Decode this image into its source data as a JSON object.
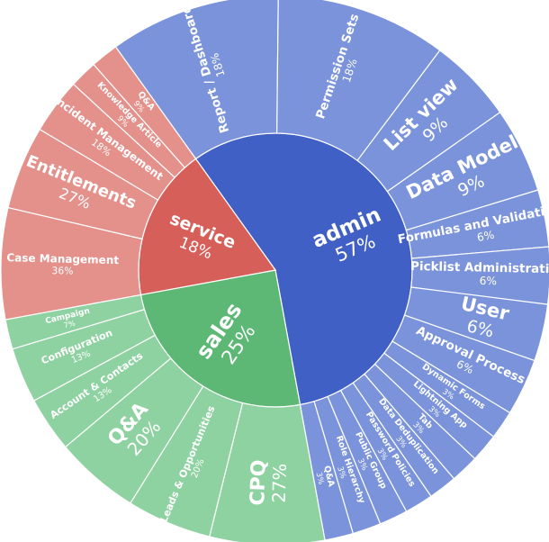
{
  "chart_data": {
    "type": "sunburst",
    "title": "",
    "children": [
      {
        "name": "admin",
        "share": "57%",
        "value": 57,
        "color": "#4160c6",
        "children": [
          {
            "name": "Report / Dashboard",
            "share": "18%",
            "value": 18,
            "color": "#7a93da"
          },
          {
            "name": "Permission Sets",
            "share": "18%",
            "value": 18,
            "color": "#7a93da"
          },
          {
            "name": "List view",
            "share": "9%",
            "value": 9,
            "color": "#7a93da"
          },
          {
            "name": "Data Model",
            "share": "9%",
            "value": 9,
            "color": "#7a93da"
          },
          {
            "name": "Formulas and Validations",
            "share": "6%",
            "value": 6,
            "color": "#7a93da"
          },
          {
            "name": "Picklist Administration",
            "share": "6%",
            "value": 6,
            "color": "#7a93da"
          },
          {
            "name": "User",
            "share": "6%",
            "value": 6,
            "color": "#7a93da"
          },
          {
            "name": "Approval Process",
            "share": "6%",
            "value": 6,
            "color": "#7a93da"
          },
          {
            "name": "Dynamic Forms",
            "share": "3%",
            "value": 3,
            "color": "#7a93da"
          },
          {
            "name": "Lightning App",
            "share": "3%",
            "value": 3,
            "color": "#7a93da"
          },
          {
            "name": "Tab",
            "share": "3%",
            "value": 3,
            "color": "#7a93da"
          },
          {
            "name": "Data Deduplication",
            "share": "3%",
            "value": 3,
            "color": "#7a93da"
          },
          {
            "name": "Password Policies",
            "share": "3%",
            "value": 3,
            "color": "#7a93da"
          },
          {
            "name": "Public Group",
            "share": "3%",
            "value": 3,
            "color": "#7a93da"
          },
          {
            "name": "Role Hierarchy",
            "share": "3%",
            "value": 3,
            "color": "#7a93da"
          },
          {
            "name": "Q&A",
            "share": "3%",
            "value": 3,
            "color": "#7a93da"
          }
        ]
      },
      {
        "name": "sales",
        "share": "25%",
        "value": 25,
        "color": "#5cb874",
        "children": [
          {
            "name": "CPQ",
            "share": "27%",
            "value": 27,
            "color": "#8fd2a1"
          },
          {
            "name": "Leads & Opportunities",
            "share": "20%",
            "value": 20,
            "color": "#8fd2a1"
          },
          {
            "name": "Q&A",
            "share": "20%",
            "value": 20,
            "color": "#8fd2a1"
          },
          {
            "name": "Account & Contacts",
            "share": "13%",
            "value": 13,
            "color": "#8fd2a1"
          },
          {
            "name": "Configuration",
            "share": "13%",
            "value": 13,
            "color": "#8fd2a1"
          },
          {
            "name": "Campaign",
            "share": "7%",
            "value": 7,
            "color": "#8fd2a1"
          }
        ]
      },
      {
        "name": "service",
        "share": "18%",
        "value": 18,
        "color": "#d65f59",
        "children": [
          {
            "name": "Case Management",
            "share": "36%",
            "value": 36,
            "color": "#e4918c"
          },
          {
            "name": "Entitlements",
            "share": "27%",
            "value": 27,
            "color": "#e4918c"
          },
          {
            "name": "Incident Management",
            "share": "18%",
            "value": 18,
            "color": "#e4918c"
          },
          {
            "name": "Knowledge Article",
            "share": "9%",
            "value": 9,
            "color": "#e4918c"
          },
          {
            "name": "Q&A",
            "share": "9%",
            "value": 9,
            "color": "#e4918c"
          }
        ]
      }
    ]
  }
}
